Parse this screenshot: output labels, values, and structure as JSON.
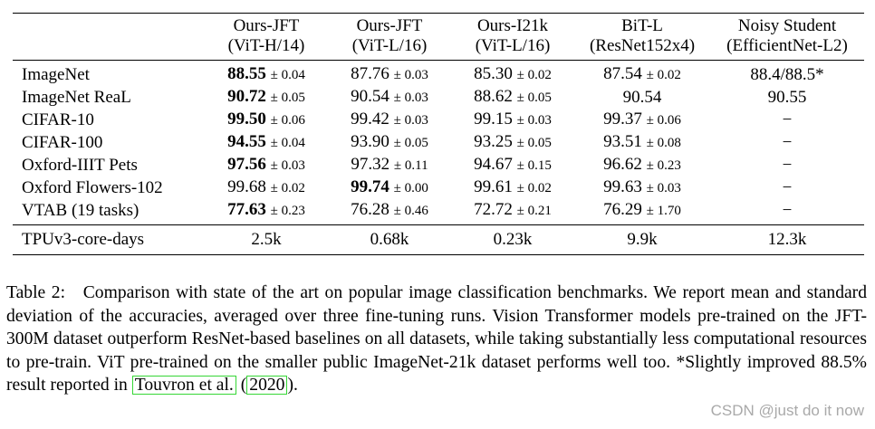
{
  "table": {
    "columns": [
      {
        "line1": "Ours-JFT",
        "line2": "(ViT-H/14)"
      },
      {
        "line1": "Ours-JFT",
        "line2": "(ViT-L/16)"
      },
      {
        "line1": "Ours-I21k",
        "line2": "(ViT-L/16)"
      },
      {
        "line1": "BiT-L",
        "line2": "(ResNet152x4)"
      },
      {
        "line1": "Noisy Student",
        "line2": "(EfficientNet-L2)"
      }
    ],
    "rows": [
      {
        "name": "ImageNet",
        "cells": [
          {
            "mean": "88.55",
            "std": "± 0.04",
            "bold": true
          },
          {
            "mean": "87.76",
            "std": "± 0.03",
            "bold": false
          },
          {
            "mean": "85.30",
            "std": "± 0.02",
            "bold": false
          },
          {
            "mean": "87.54",
            "std": "± 0.02",
            "bold": false
          },
          {
            "mean": "88.4/88.5*",
            "std": "",
            "bold": false
          }
        ]
      },
      {
        "name": "ImageNet ReaL",
        "cells": [
          {
            "mean": "90.72",
            "std": "± 0.05",
            "bold": true
          },
          {
            "mean": "90.54",
            "std": "± 0.03",
            "bold": false
          },
          {
            "mean": "88.62",
            "std": "± 0.05",
            "bold": false
          },
          {
            "mean": "90.54",
            "std": "",
            "bold": false
          },
          {
            "mean": "90.55",
            "std": "",
            "bold": false
          }
        ]
      },
      {
        "name": "CIFAR-10",
        "cells": [
          {
            "mean": "99.50",
            "std": "± 0.06",
            "bold": true
          },
          {
            "mean": "99.42",
            "std": "± 0.03",
            "bold": false
          },
          {
            "mean": "99.15",
            "std": "± 0.03",
            "bold": false
          },
          {
            "mean": "99.37",
            "std": "± 0.06",
            "bold": false
          },
          {
            "mean": "−",
            "std": "",
            "bold": false
          }
        ]
      },
      {
        "name": "CIFAR-100",
        "cells": [
          {
            "mean": "94.55",
            "std": "± 0.04",
            "bold": true
          },
          {
            "mean": "93.90",
            "std": "± 0.05",
            "bold": false
          },
          {
            "mean": "93.25",
            "std": "± 0.05",
            "bold": false
          },
          {
            "mean": "93.51",
            "std": "± 0.08",
            "bold": false
          },
          {
            "mean": "−",
            "std": "",
            "bold": false
          }
        ]
      },
      {
        "name": "Oxford-IIIT Pets",
        "cells": [
          {
            "mean": "97.56",
            "std": "± 0.03",
            "bold": true
          },
          {
            "mean": "97.32",
            "std": "± 0.11",
            "bold": false
          },
          {
            "mean": "94.67",
            "std": "± 0.15",
            "bold": false
          },
          {
            "mean": "96.62",
            "std": "± 0.23",
            "bold": false
          },
          {
            "mean": "−",
            "std": "",
            "bold": false
          }
        ]
      },
      {
        "name": "Oxford Flowers-102",
        "cells": [
          {
            "mean": "99.68",
            "std": "± 0.02",
            "bold": false
          },
          {
            "mean": "99.74",
            "std": "± 0.00",
            "bold": true
          },
          {
            "mean": "99.61",
            "std": "± 0.02",
            "bold": false
          },
          {
            "mean": "99.63",
            "std": "± 0.03",
            "bold": false
          },
          {
            "mean": "−",
            "std": "",
            "bold": false
          }
        ]
      },
      {
        "name": "VTAB (19 tasks)",
        "cells": [
          {
            "mean": "77.63",
            "std": "± 0.23",
            "bold": true
          },
          {
            "mean": "76.28",
            "std": "± 0.46",
            "bold": false
          },
          {
            "mean": "72.72",
            "std": "± 0.21",
            "bold": false
          },
          {
            "mean": "76.29",
            "std": "± 1.70",
            "bold": false
          },
          {
            "mean": "−",
            "std": "",
            "bold": false
          }
        ]
      }
    ],
    "footer": {
      "name": "TPUv3-core-days",
      "values": [
        "2.5k",
        "0.68k",
        "0.23k",
        "9.9k",
        "12.3k"
      ]
    }
  },
  "caption": {
    "label": "Table 2:",
    "text_before": "Comparison with state of the art on popular image classification benchmarks. We report mean and standard deviation of the accuracies, averaged over three fine-tuning runs. Vision Transformer models pre-trained on the JFT-300M dataset outperform ResNet-based baselines on all datasets, while taking substantially less computational resources to pre-train. ViT pre-trained on the smaller public ImageNet-21k dataset performs well too. *Slightly improved 88.5% result reported in ",
    "cite_authors": "Touvron et al.",
    "cite_year": "2020",
    "text_after": "."
  },
  "watermark": "CSDN @just do it now",
  "colors": {
    "citation_box": "#36d636",
    "watermark": "#a9a9a9"
  }
}
